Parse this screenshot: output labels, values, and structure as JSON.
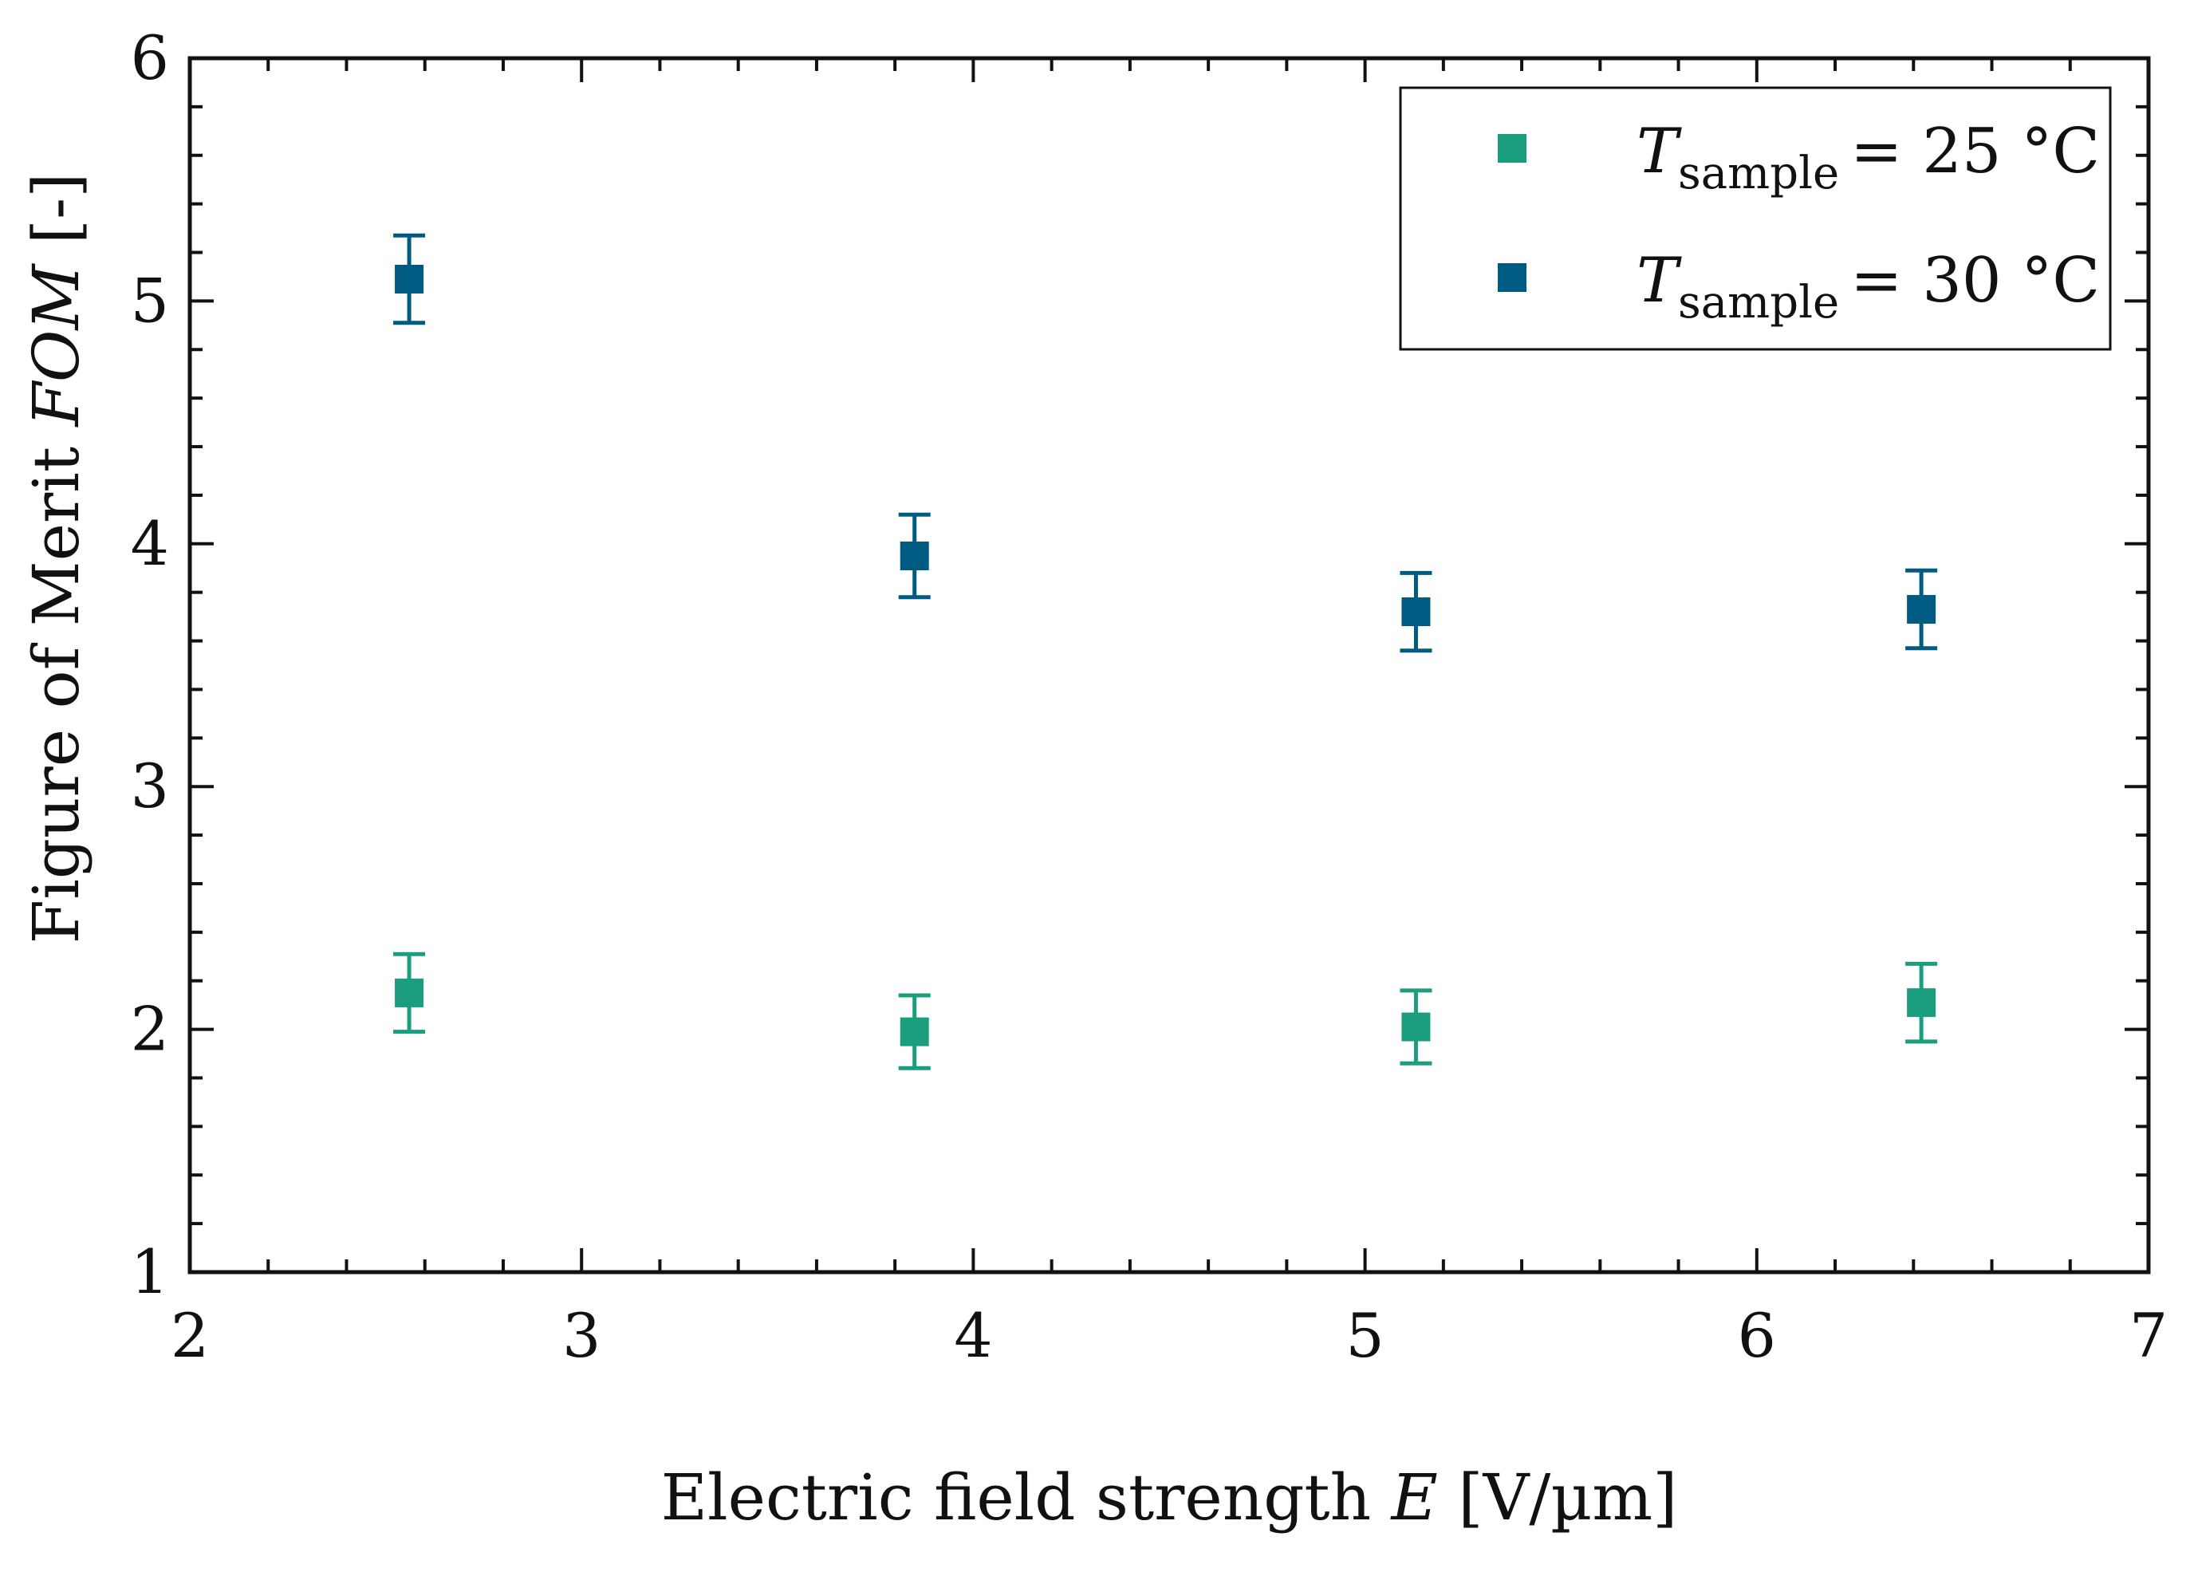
{
  "chart_data": {
    "type": "scatter",
    "title": "",
    "xlabel": "Electric field strength",
    "xlabel_var": "E",
    "xlabel_unit": "[V/µm]",
    "ylabel": "Figure of Merit",
    "ylabel_var": "FOM",
    "ylabel_unit": "[-]",
    "xlim": [
      2,
      7
    ],
    "ylim": [
      1,
      6
    ],
    "xticks": [
      2,
      3,
      4,
      5,
      6,
      7
    ],
    "yticks": [
      1,
      2,
      3,
      4,
      5,
      6
    ],
    "grid": false,
    "legend_position": "top-right",
    "series": [
      {
        "name": "T_sample = 25 °C",
        "symbol": "T",
        "subscript": "sample",
        "suffix": "= 25 °C",
        "color": "#1a9e7e",
        "marker": "square",
        "x": [
          2.56,
          3.85,
          5.13,
          6.42
        ],
        "y": [
          2.15,
          1.99,
          2.01,
          2.11
        ],
        "err": [
          0.16,
          0.15,
          0.15,
          0.16
        ]
      },
      {
        "name": "T_sample = 30 °C",
        "symbol": "T",
        "subscript": "sample",
        "suffix": "= 30 °C",
        "color": "#005b82",
        "marker": "square",
        "x": [
          2.56,
          3.85,
          5.13,
          6.42
        ],
        "y": [
          5.09,
          3.95,
          3.72,
          3.73
        ],
        "err": [
          0.18,
          0.17,
          0.16,
          0.16
        ]
      }
    ]
  }
}
